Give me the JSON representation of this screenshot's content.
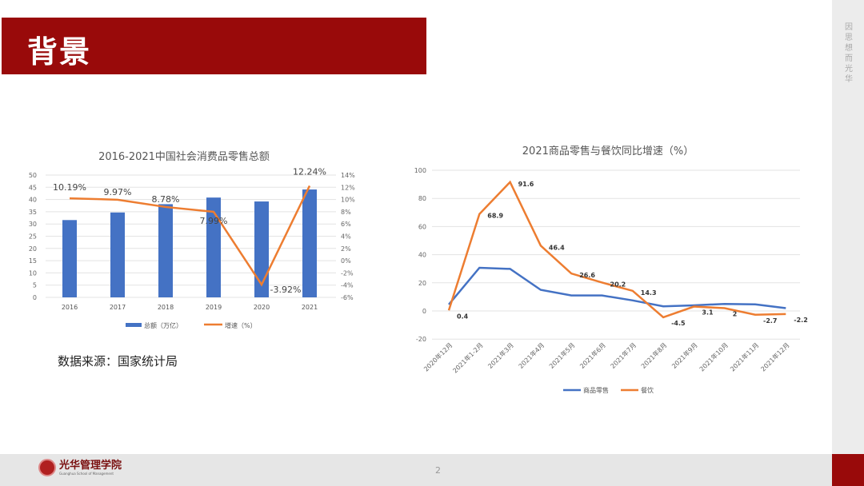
{
  "header": {
    "title": "背景"
  },
  "side": {
    "slogan": "因思想 而光华"
  },
  "footer": {
    "page_number": "2",
    "logo_cn": "光华管理学院",
    "logo_en": "Guanghua School of Management"
  },
  "source_note": "数据来源：国家统计局",
  "colors": {
    "brand_red": "#990a0a",
    "bar_blue": "#4472c4",
    "line_orange": "#ed7d31",
    "line_blue": "#4472c4"
  },
  "chart_data": [
    {
      "type": "bar+line",
      "title": "2016-2021中国社会消费品零售总额",
      "categories": [
        "2016",
        "2017",
        "2018",
        "2019",
        "2020",
        "2021"
      ],
      "series": [
        {
          "name": "总额（万亿）",
          "type": "bar",
          "axis": "left",
          "values": [
            31.6,
            34.7,
            38.1,
            40.8,
            39.2,
            44.1
          ]
        },
        {
          "name": "增速（%）",
          "type": "line",
          "axis": "right",
          "values": [
            10.19,
            9.97,
            8.78,
            7.99,
            -3.92,
            12.24
          ],
          "labels": [
            "10.19%",
            "9.97%",
            "8.78%",
            "7.99%",
            "-3.92%",
            "12.24%"
          ]
        }
      ],
      "left_axis": {
        "ylim": [
          0,
          50
        ],
        "ticks": [
          "0",
          "5",
          "10",
          "15",
          "20",
          "25",
          "30",
          "35",
          "40",
          "45",
          "50"
        ]
      },
      "right_axis": {
        "ylim": [
          -6,
          14
        ],
        "ticks": [
          "-6%",
          "-4%",
          "-2%",
          "0%",
          "2%",
          "4%",
          "6%",
          "8%",
          "10%",
          "12%",
          "14%"
        ]
      },
      "grid": true,
      "legend": "bottom"
    },
    {
      "type": "line",
      "title": "2021商品零售与餐饮同比增速（%）",
      "categories": [
        "2020年12月",
        "2021年1-2月",
        "2021年3月",
        "2021年4月",
        "2021年5月",
        "2021年6月",
        "2021年7月",
        "2021年8月",
        "2021年9月",
        "2021年10月",
        "2021年11月",
        "2021年12月"
      ],
      "series": [
        {
          "name": "商品零售",
          "values": [
            4.6,
            30.7,
            29.9,
            15.0,
            11.0,
            11.0,
            7.5,
            3.3,
            4.0,
            5.0,
            4.7,
            2.0
          ]
        },
        {
          "name": "餐饮",
          "values": [
            0.4,
            68.9,
            91.6,
            46.4,
            26.6,
            20.2,
            14.3,
            -4.5,
            3.1,
            2,
            -2.7,
            -2.2
          ],
          "labels": [
            "0.4",
            "68.9",
            "91.6",
            "46.4",
            "26.6",
            "20.2",
            "14.3",
            "-4.5",
            "3.1",
            "2",
            "-2.7",
            "-2.2"
          ]
        }
      ],
      "ylim": [
        -20,
        100
      ],
      "ticks": [
        "-20",
        "0",
        "20",
        "40",
        "60",
        "80",
        "100"
      ],
      "grid": true,
      "legend": "bottom"
    }
  ]
}
